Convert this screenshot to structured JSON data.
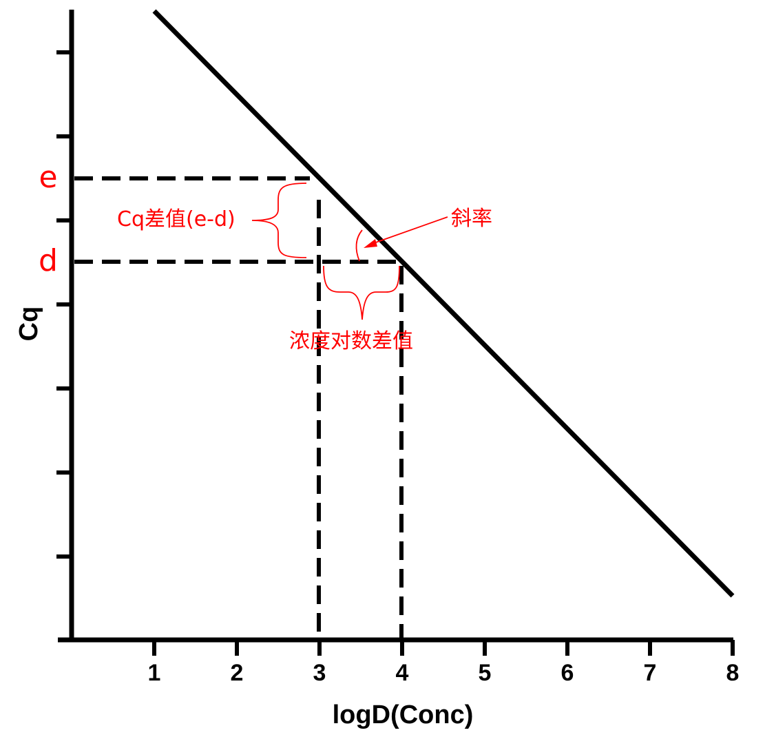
{
  "chart_data": {
    "type": "line",
    "xlabel": "logD(Conc)",
    "ylabel": "Cq",
    "x_ticks": [
      "1",
      "2",
      "3",
      "4",
      "5",
      "6",
      "7",
      "8"
    ],
    "xlim": [
      0,
      8
    ],
    "ylim": [
      0,
      1
    ],
    "grid": false,
    "legend": "none",
    "series": [
      {
        "x": [
          1,
          8
        ],
        "y": [
          1.0,
          0.07
        ]
      }
    ],
    "annotations": {
      "e_label": "e",
      "d_label": "d",
      "cq_diff": "Cq差值(e-d)",
      "slope": "斜率",
      "log_diff": "浓度对数差值",
      "x_markers": [
        3,
        4
      ]
    },
    "colors": {
      "line": "#000000",
      "annotation": "#ff0000"
    }
  }
}
